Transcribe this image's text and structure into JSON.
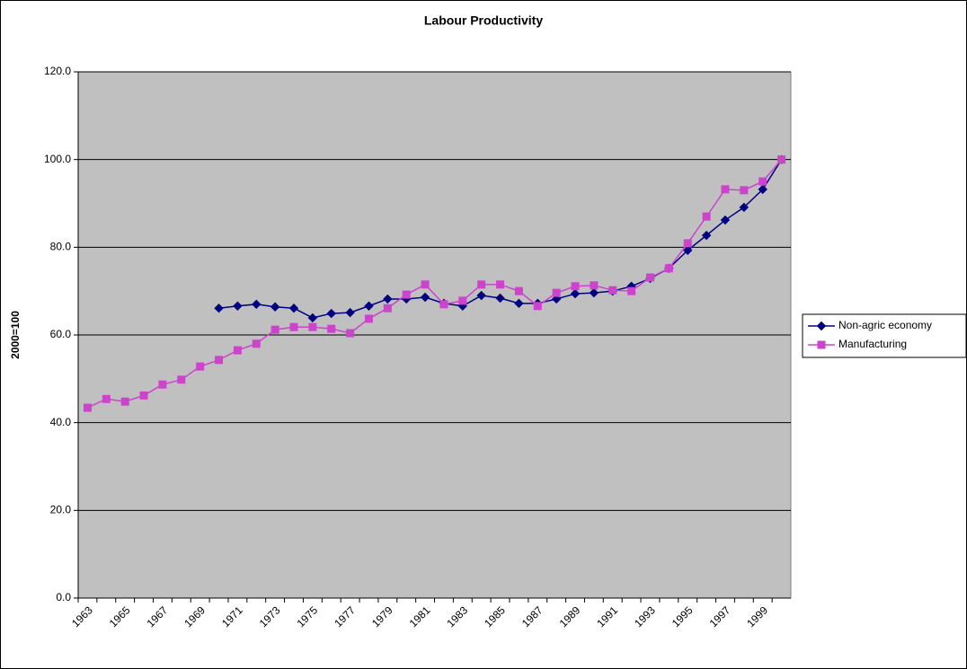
{
  "chart_data": {
    "type": "line",
    "title": "Labour Productivity",
    "y_label": "2000=100",
    "categories": [
      "1963",
      null,
      "1965",
      null,
      "1967",
      null,
      "1969",
      null,
      "1971",
      null,
      "1973",
      null,
      "1975",
      null,
      "1977",
      null,
      "1979",
      null,
      "1981",
      null,
      "1983",
      null,
      "1985",
      null,
      "1987",
      null,
      "1989",
      null,
      "1991",
      null,
      "1993",
      null,
      "1995",
      null,
      "1997",
      null,
      "1999",
      null
    ],
    "series": [
      {
        "name": "Non-agric economy",
        "color": "#000080",
        "marker": "diamond",
        "values": [
          null,
          null,
          null,
          null,
          null,
          null,
          null,
          66.1,
          66.6,
          67.0,
          66.4,
          66.1,
          63.9,
          64.9,
          65.1,
          66.6,
          68.2,
          68.2,
          68.6,
          67.2,
          66.6,
          69.0,
          68.4,
          67.2,
          67.2,
          68.2,
          69.4,
          69.6,
          70.0,
          71.1,
          72.9,
          75.2,
          79.3,
          82.7,
          86.2,
          89.1,
          93.2,
          100.0
        ]
      },
      {
        "name": "Manufacturing",
        "color": "#cc44cc",
        "marker": "square",
        "values": [
          43.4,
          45.4,
          44.8,
          46.2,
          48.7,
          49.8,
          52.8,
          54.3,
          56.5,
          58.0,
          61.2,
          61.8,
          61.8,
          61.4,
          60.4,
          63.7,
          66.1,
          69.2,
          71.5,
          67.0,
          67.8,
          71.5,
          71.5,
          70.0,
          66.6,
          69.6,
          71.1,
          71.3,
          70.2,
          70.0,
          73.1,
          75.2,
          80.9,
          87.0,
          93.2,
          93.0,
          95.0,
          100.0
        ]
      }
    ],
    "ylim": [
      0,
      120
    ],
    "yticks": [
      {
        "value": 0,
        "label": "0.0"
      },
      {
        "value": 20,
        "label": "20.0"
      },
      {
        "value": 40,
        "label": "40.0"
      },
      {
        "value": 60,
        "label": "60.0"
      },
      {
        "value": 80,
        "label": "80.0"
      },
      {
        "value": 100,
        "label": "100.0"
      },
      {
        "value": 120,
        "label": "120.0"
      }
    ],
    "grid": true,
    "legend": "right"
  }
}
